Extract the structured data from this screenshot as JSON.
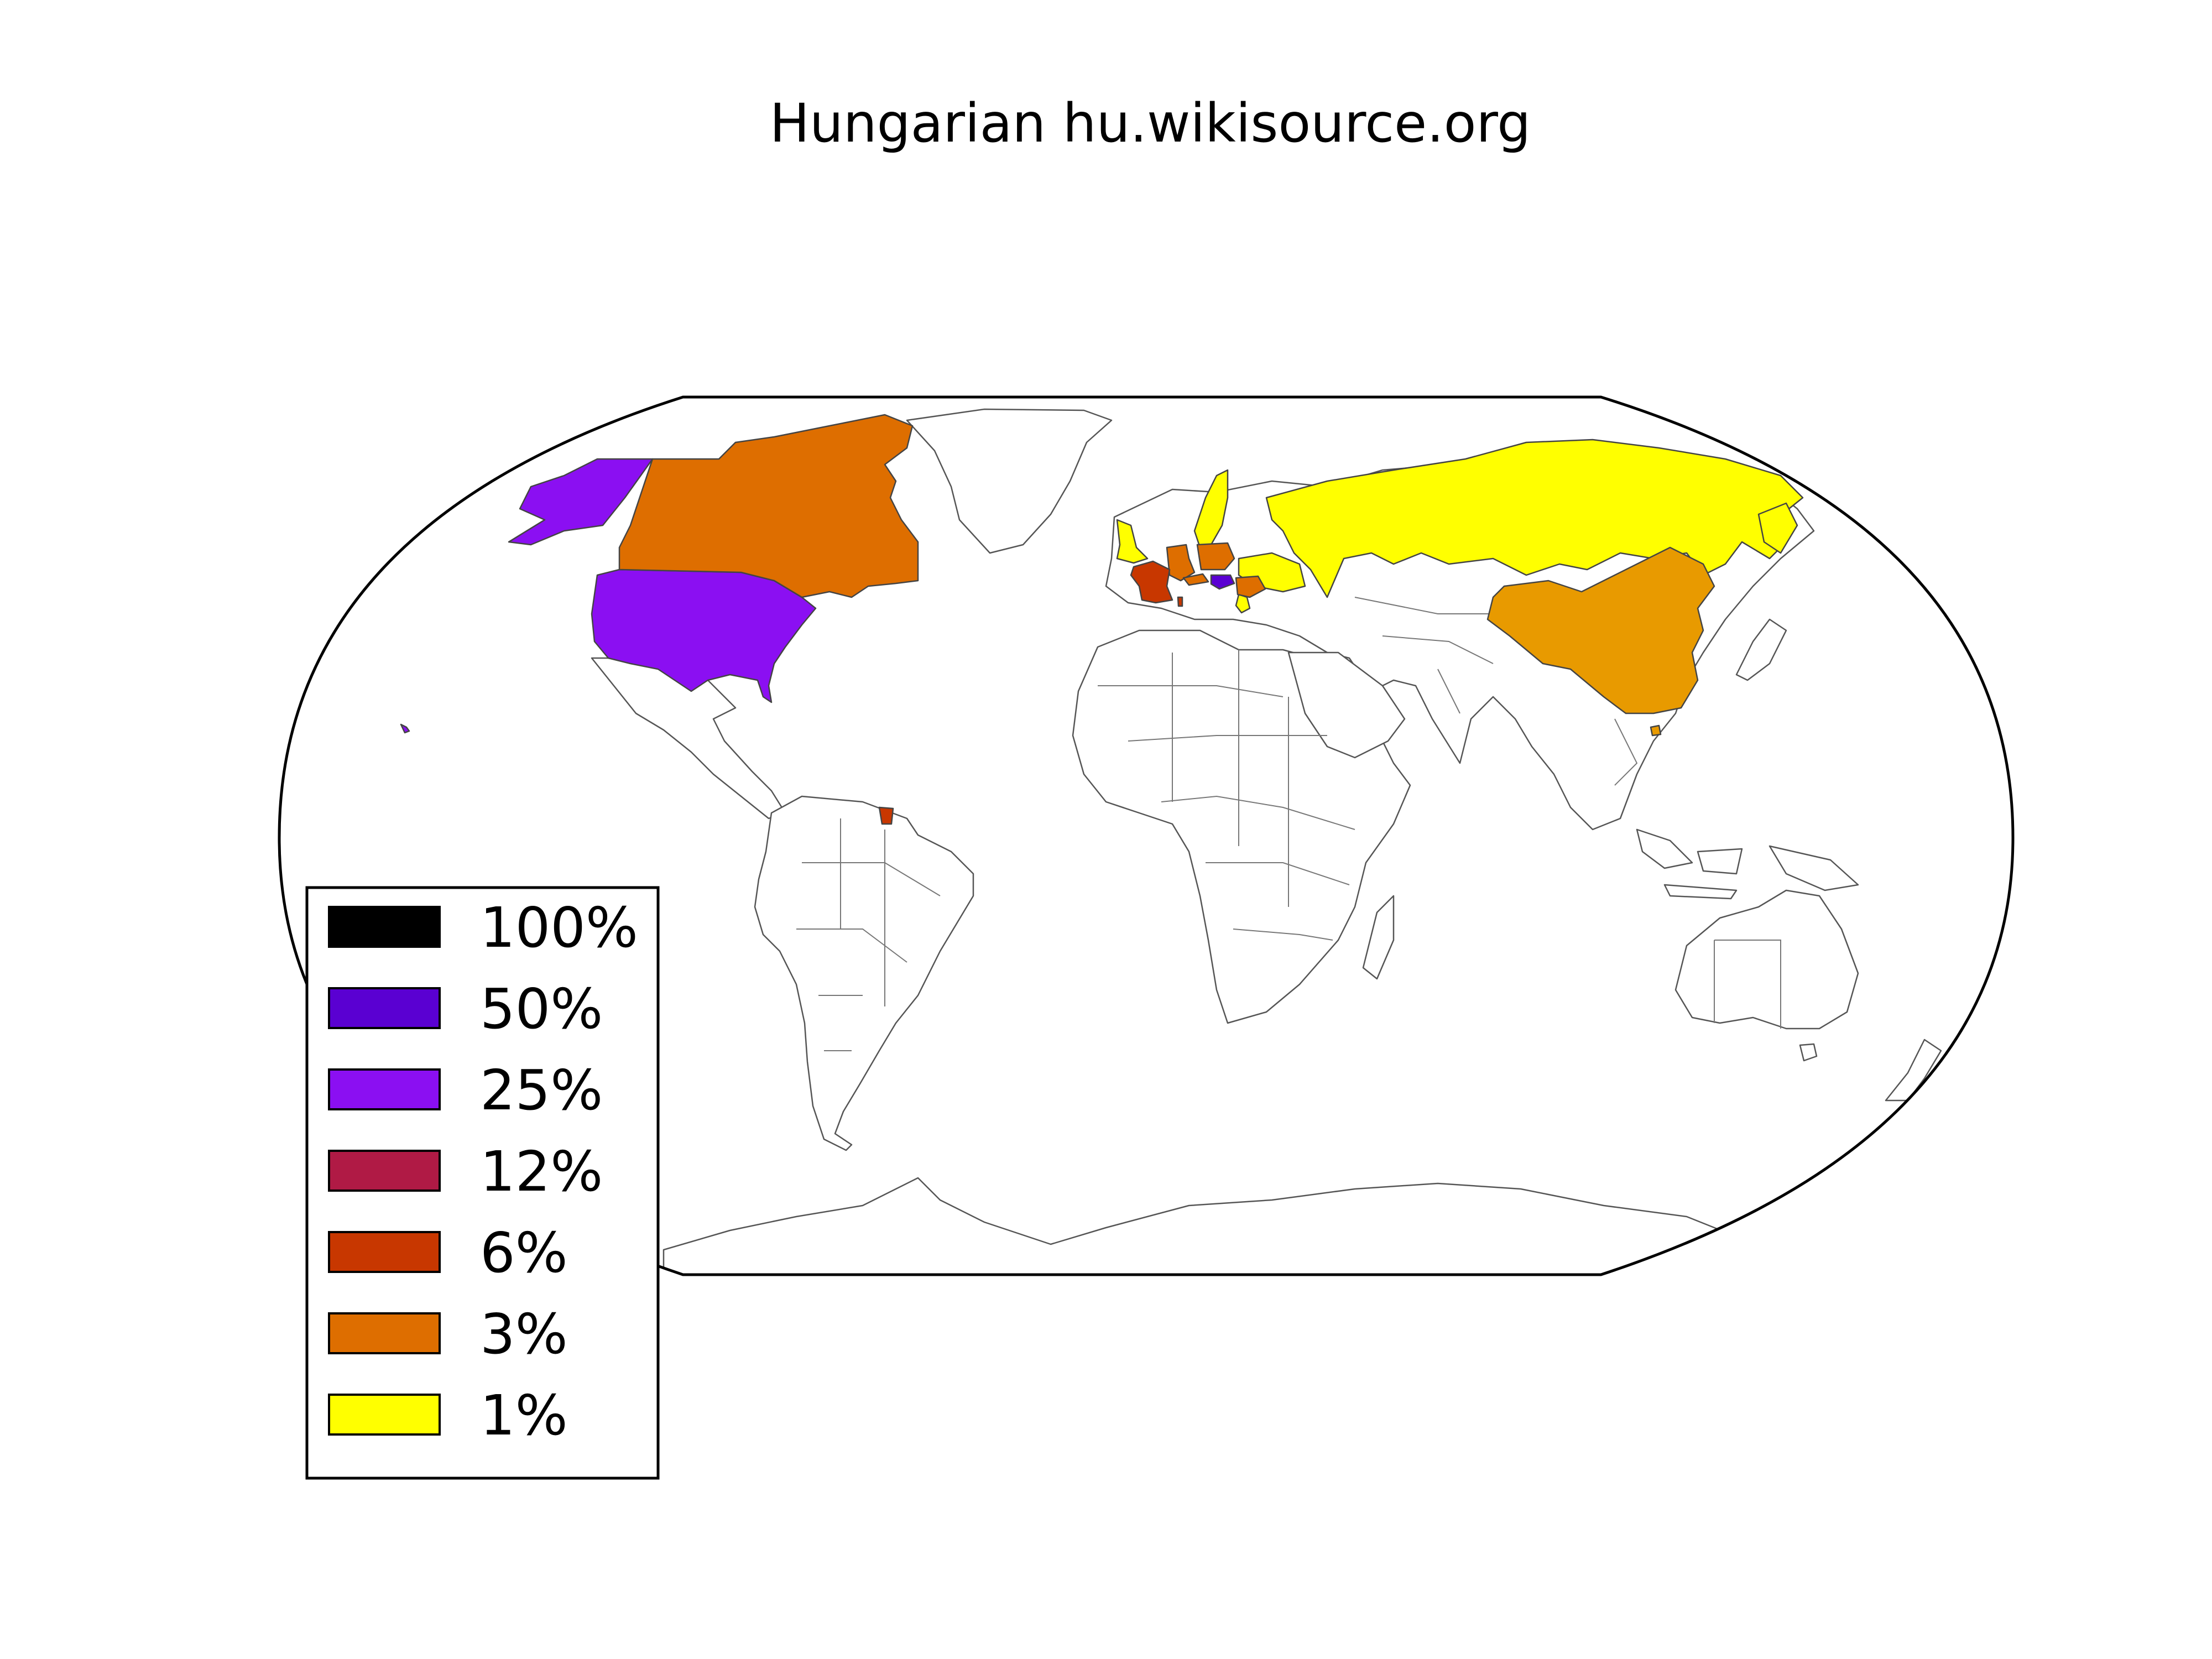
{
  "title": "Hungarian hu.wikisource.org",
  "legend": {
    "placement": "lower-left",
    "items": [
      {
        "label": "100%",
        "color": "#000000"
      },
      {
        "label": "50%",
        "color": "#5a00d2"
      },
      {
        "label": "25%",
        "color": "#8b0ff2"
      },
      {
        "label": "12%",
        "color": "#b01a45"
      },
      {
        "label": "6%",
        "color": "#c83700"
      },
      {
        "label": "3%",
        "color": "#de6e00"
      },
      {
        "label": "1%",
        "color": "#ffff00"
      }
    ]
  },
  "regions": [
    {
      "name": "Hungary",
      "color": "#5a00d2"
    },
    {
      "name": "United States",
      "color": "#8b0ff2"
    },
    {
      "name": "France",
      "color": "#c83700"
    },
    {
      "name": "French Guiana",
      "color": "#c83700"
    },
    {
      "name": "Canada",
      "color": "#de6e00"
    },
    {
      "name": "Germany",
      "color": "#de6e00"
    },
    {
      "name": "Austria",
      "color": "#de6e00"
    },
    {
      "name": "Romania",
      "color": "#de6e00"
    },
    {
      "name": "Poland",
      "color": "#de6e00"
    },
    {
      "name": "China",
      "color": "#e89a00"
    },
    {
      "name": "Russia",
      "color": "#ffff00"
    },
    {
      "name": "United Kingdom",
      "color": "#ffff00"
    },
    {
      "name": "Sweden",
      "color": "#ffff00"
    },
    {
      "name": "Ukraine",
      "color": "#ffff00"
    },
    {
      "name": "Serbia",
      "color": "#ffff00"
    }
  ]
}
